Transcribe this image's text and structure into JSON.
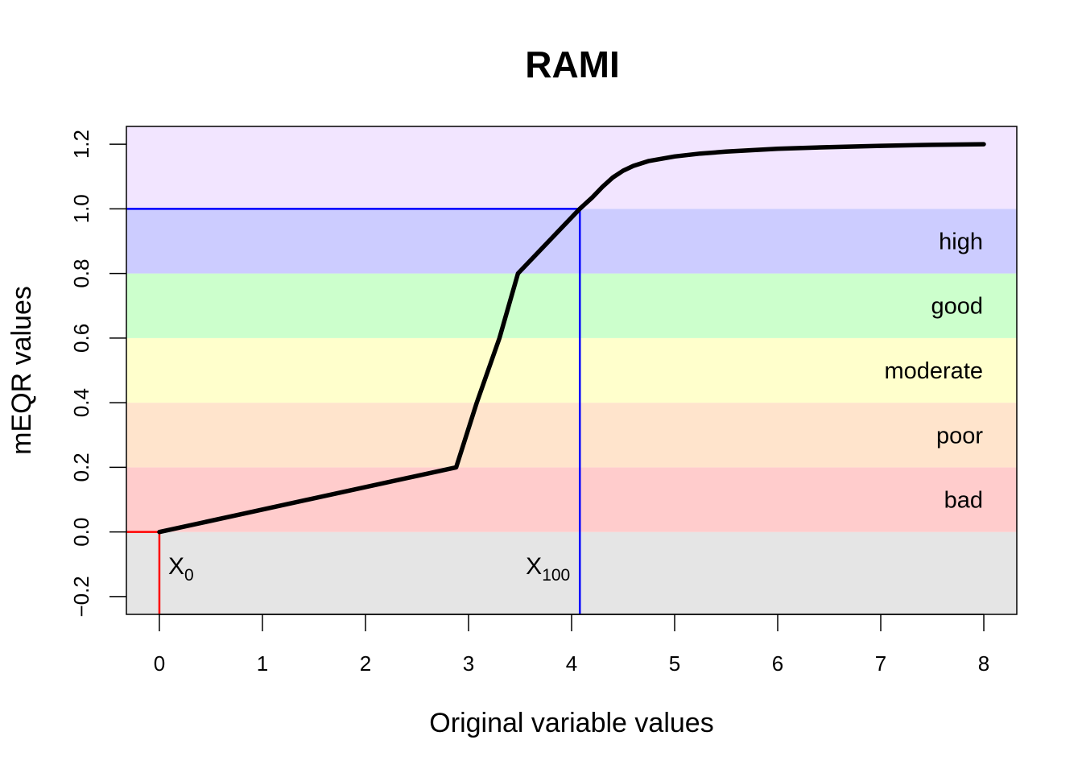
{
  "chart_data": {
    "type": "line",
    "title": "RAMI",
    "xlabel": "Original variable values",
    "ylabel": "mEQR values",
    "xlim": [
      -0.32,
      8.32
    ],
    "ylim": [
      -0.255,
      1.255
    ],
    "x_ticks": [
      0,
      1,
      2,
      3,
      4,
      5,
      6,
      7,
      8
    ],
    "y_ticks": [
      -0.2,
      0.0,
      0.2,
      0.4,
      0.6,
      0.8,
      1.0,
      1.2
    ],
    "y_tick_labels": [
      "−0.2",
      "0.0",
      "0.2",
      "0.4",
      "0.6",
      "0.8",
      "1.0",
      "1.2"
    ],
    "bands": [
      {
        "name": "below-zero",
        "y0": -0.255,
        "y1": 0.0,
        "color": "#e5e5e5",
        "label": ""
      },
      {
        "name": "bad",
        "y0": 0.0,
        "y1": 0.2,
        "color": "#ffcccc",
        "label": "bad"
      },
      {
        "name": "poor",
        "y0": 0.2,
        "y1": 0.4,
        "color": "#ffe4cc",
        "label": "poor"
      },
      {
        "name": "moderate",
        "y0": 0.4,
        "y1": 0.6,
        "color": "#ffffcc",
        "label": "moderate"
      },
      {
        "name": "good",
        "y0": 0.6,
        "y1": 0.8,
        "color": "#ccffcc",
        "label": "good"
      },
      {
        "name": "high",
        "y0": 0.8,
        "y1": 1.0,
        "color": "#ccccff",
        "label": "high"
      },
      {
        "name": "above-one",
        "y0": 1.0,
        "y1": 1.255,
        "color": "#f2e5ff",
        "label": ""
      }
    ],
    "series": [
      {
        "name": "mEQR curve",
        "color": "#000000",
        "x": [
          0,
          2.88,
          3.08,
          3.3,
          3.48,
          4.08,
          4.2,
          4.3,
          4.4,
          4.5,
          4.6,
          4.75,
          5.0,
          5.25,
          5.5,
          6.0,
          6.5,
          7.0,
          7.5,
          8.0
        ],
        "y": [
          0.0,
          0.2,
          0.4,
          0.6,
          0.8,
          1.0,
          1.035,
          1.068,
          1.097,
          1.118,
          1.133,
          1.148,
          1.162,
          1.171,
          1.177,
          1.186,
          1.191,
          1.195,
          1.198,
          1.2
        ]
      }
    ],
    "markers": [
      {
        "name": "x0",
        "x": 0.0,
        "y": 0.0,
        "color": "#ff0000",
        "label_main": "X",
        "label_sub": "0"
      },
      {
        "name": "x100",
        "x": 4.08,
        "y": 1.0,
        "color": "#0000ff",
        "label_main": "X",
        "label_sub": "100"
      }
    ]
  }
}
